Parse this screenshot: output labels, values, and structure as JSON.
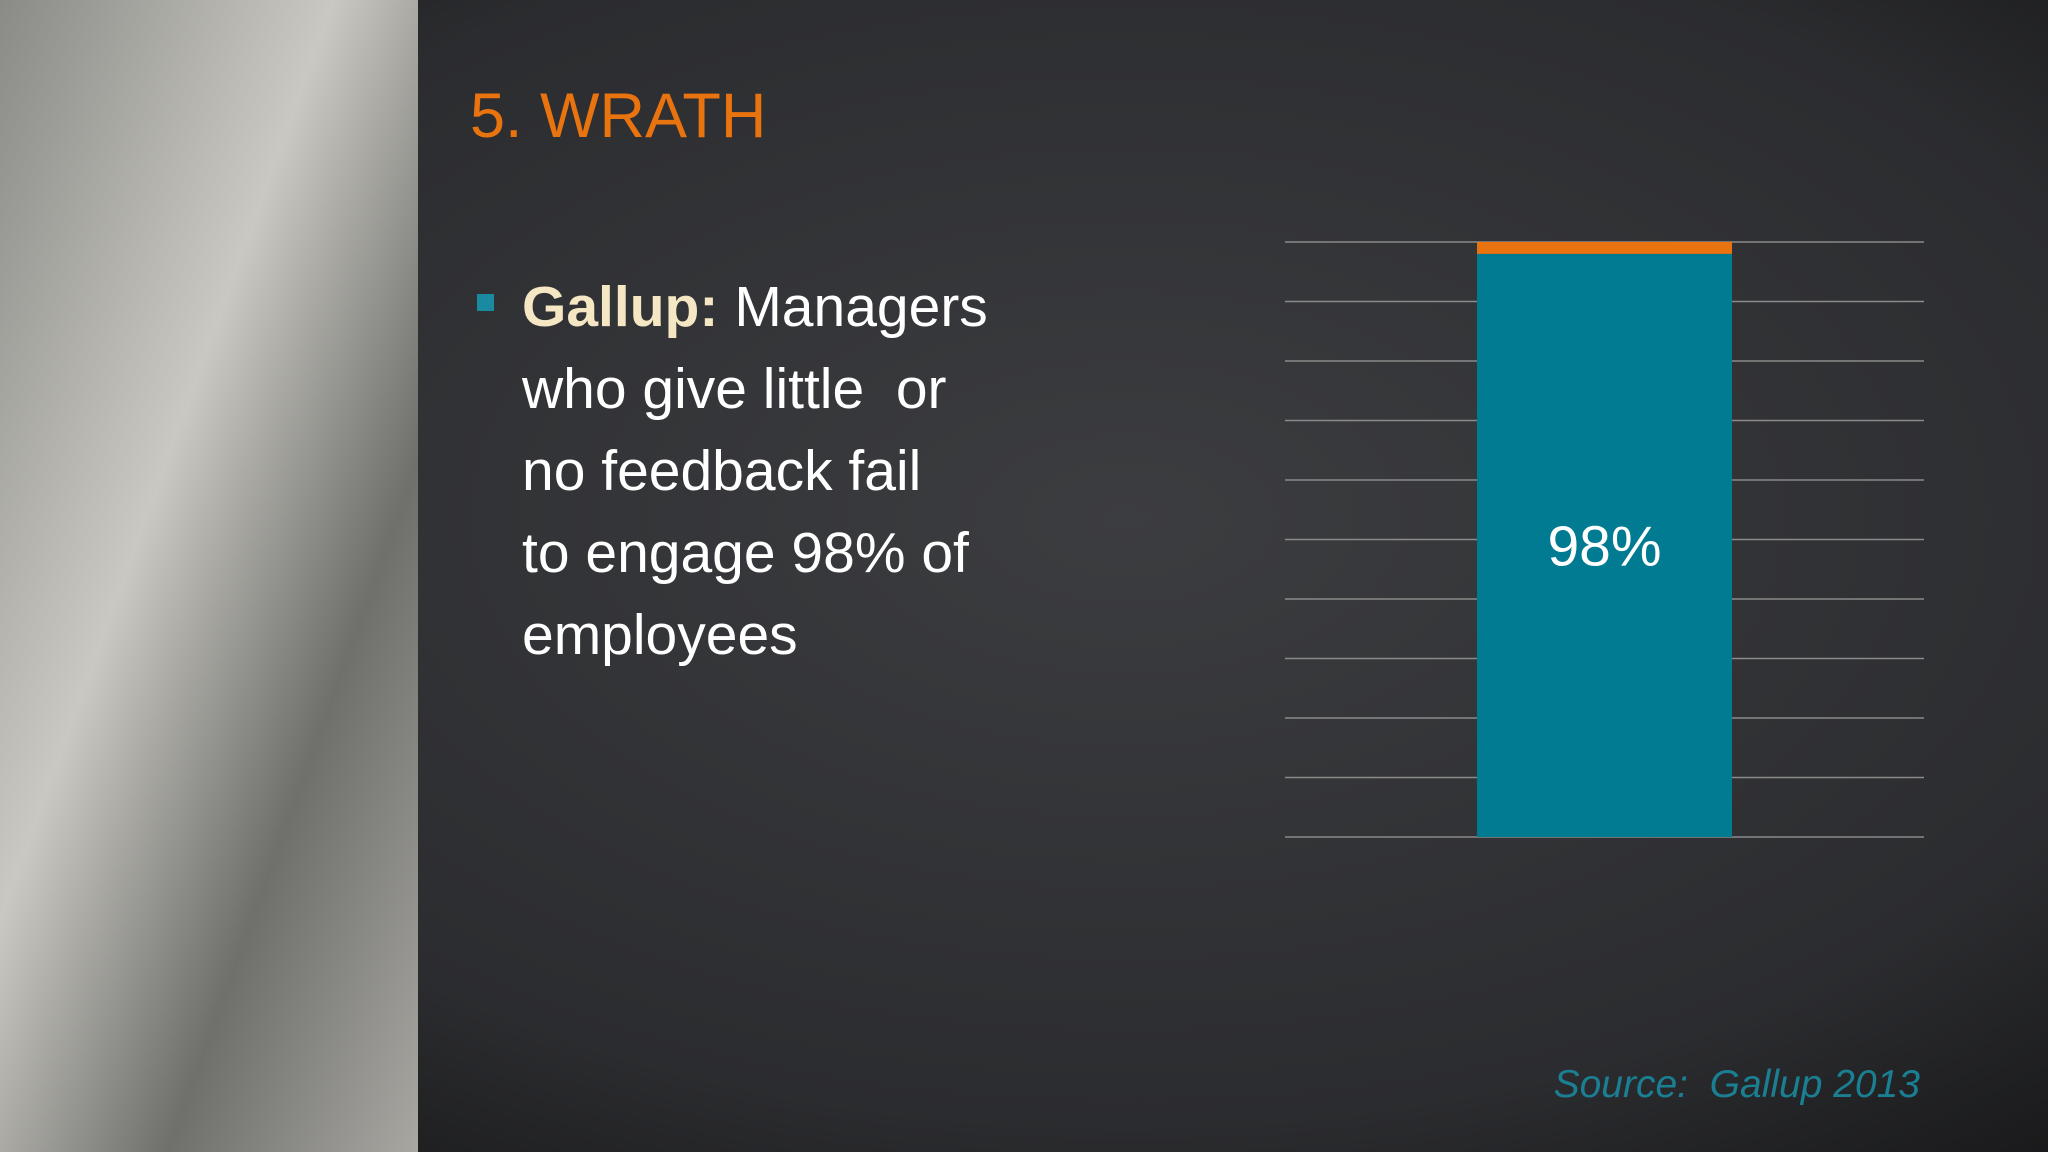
{
  "slide": {
    "title": "5. WRATH",
    "bullet": {
      "label": "Gallup:",
      "lines": [
        "Managers",
        "who give little  or",
        "no feedback fail",
        "to engage 98% of",
        "employees"
      ]
    },
    "source": "Source:  Gallup 2013"
  },
  "chart_data": {
    "type": "bar",
    "categories": [
      null
    ],
    "series": [
      {
        "color": "#007b91",
        "values": [
          98
        ],
        "value_labels": [
          "98%"
        ]
      },
      {
        "color": "#e8730f",
        "values": [
          2
        ]
      }
    ],
    "stacked": true,
    "ylim": [
      0,
      100
    ],
    "yticks": [
      0,
      10,
      20,
      30,
      40,
      50,
      60,
      70,
      80,
      90,
      100
    ],
    "grid": true
  }
}
